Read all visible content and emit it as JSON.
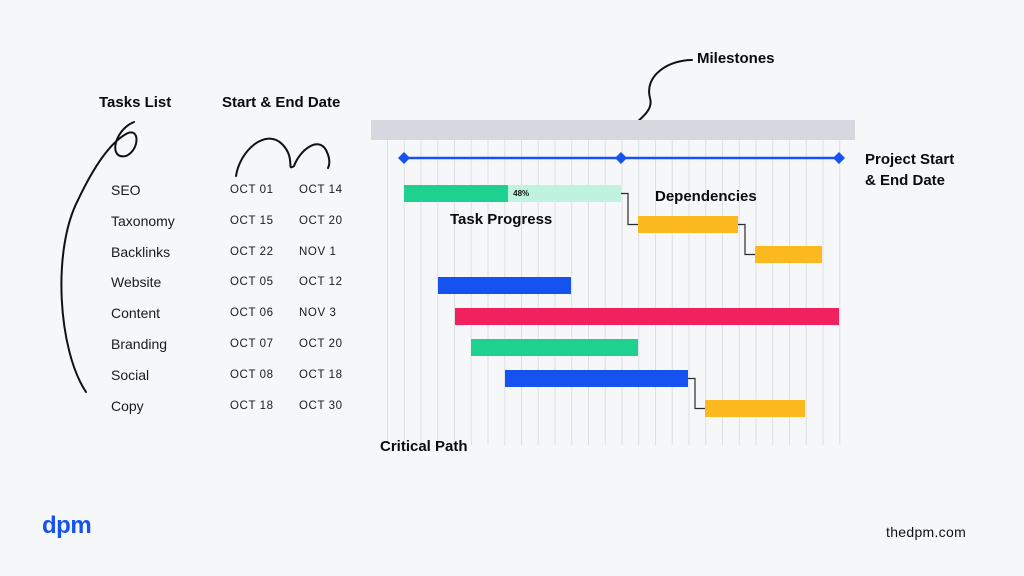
{
  "headings": {
    "tasks_list": "Tasks List",
    "start_end_date": "Start & End Date"
  },
  "callouts": {
    "milestones": "Milestones",
    "project_start_end_line1": "Project Start",
    "project_start_end_line2": "& End Date",
    "dependencies": "Dependencies",
    "task_progress": "Task Progress",
    "critical_path": "Critical Path"
  },
  "tasks": [
    {
      "name": "SEO",
      "start": "OCT 01",
      "end": "OCT 14",
      "color": "#1fd18f",
      "progress": "48%"
    },
    {
      "name": "Taxonomy",
      "start": "OCT 15",
      "end": "OCT 20",
      "color": "#fbb81f"
    },
    {
      "name": "Backlinks",
      "start": "OCT 22",
      "end": "NOV 1",
      "color": "#fbb81f"
    },
    {
      "name": "Website",
      "start": "OCT 05",
      "end": "OCT 12",
      "color": "#1652f0"
    },
    {
      "name": "Content",
      "start": "OCT 06",
      "end": "NOV 3",
      "color": "#f1215f"
    },
    {
      "name": "Branding",
      "start": "OCT 07",
      "end": "OCT 20",
      "color": "#1fd18f"
    },
    {
      "name": "Social",
      "start": "OCT 08",
      "end": "OCT 18",
      "color": "#1652f0"
    },
    {
      "name": "Copy",
      "start": "OCT 18",
      "end": "OCT 30",
      "color": "#fbb81f"
    }
  ],
  "colors": {
    "milestone_line": "#1652f0",
    "progress_remaining": "#bff3df",
    "grid_header": "#d5d8de",
    "grid_line": "#dcdfe4"
  },
  "footer": {
    "logo": "dpm",
    "site": "thedpm.com"
  }
}
